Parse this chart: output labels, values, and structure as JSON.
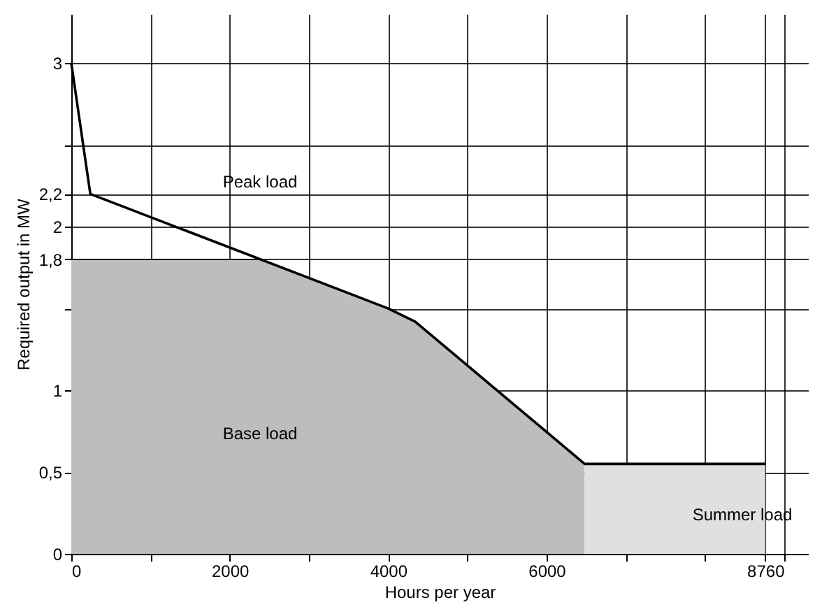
{
  "chart_data": {
    "type": "line",
    "xlabel": "Hours per year",
    "ylabel": "Required output in MW",
    "xlim": [
      0,
      9300
    ],
    "ylim": [
      0,
      3.3
    ],
    "xticks": [
      0,
      {
        "value": 1000,
        "label": null
      },
      2000,
      {
        "value": 3000,
        "label": null
      },
      4000,
      {
        "value": 5000,
        "label": null
      },
      6000,
      {
        "value": 7000,
        "label": null
      },
      {
        "value": 8000,
        "label": null
      },
      8760,
      {
        "value": 9000,
        "label": null
      }
    ],
    "yticks": [
      0,
      {
        "value": 0.5,
        "label": "0,5"
      },
      1,
      {
        "value": 1.5,
        "label": null
      },
      {
        "value": 1.8,
        "label": "1,8"
      },
      2,
      {
        "value": 2.2,
        "label": "2,2"
      },
      {
        "value": 2.5,
        "label": null
      },
      3
    ],
    "grid": true,
    "marker": "none",
    "line_style": "solid",
    "series": [
      {
        "type": "area",
        "color": "#bdbdbd",
        "x": [
          0,
          2390,
          4000,
          4340,
          6480
        ],
        "values": [
          1.8,
          1.8,
          1.5,
          1.42,
          0.55
        ]
      },
      {
        "type": "area",
        "color": "#e0e0e0",
        "x": [
          6480,
          8760
        ],
        "values": [
          0.55,
          0.55
        ]
      },
      {
        "color": "#000000",
        "x": [
          0,
          240,
          4000,
          4340,
          6480,
          8760
        ],
        "values": [
          3,
          2.2,
          1.5,
          1.42,
          0.55,
          0.55
        ]
      }
    ],
    "annotations": [
      "Peak load",
      "Base load",
      "Summer load"
    ]
  }
}
